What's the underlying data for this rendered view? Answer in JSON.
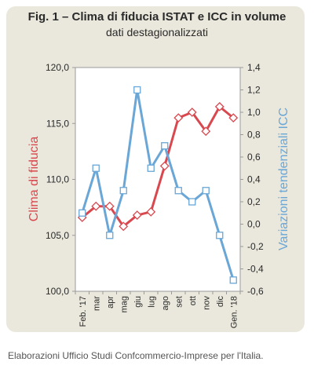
{
  "header": {
    "title": "Fig. 1 – Clima di fiducia ISTAT e ICC in volume",
    "subtitle": "dati destagionalizzati"
  },
  "footer": {
    "source": "Elaborazioni Ufficio Studi Confcommercio-Imprese per l'Italia."
  },
  "colors": {
    "panel_bg": "#eae8dc",
    "plot_bg": "#ffffff",
    "left_series": "#d9484e",
    "right_series": "#6aa6d6"
  },
  "chart_data": {
    "type": "line",
    "categories": [
      "Feb. '17",
      "mar",
      "apr",
      "mag",
      "giu",
      "lug",
      "ago",
      "set",
      "ott",
      "nov",
      "dic",
      "Gen. '18"
    ],
    "ylabel": "Clima di fiducia",
    "y2label": "Variazioni tendenziali ICC",
    "ylim": [
      100,
      120
    ],
    "y2lim": [
      -0.6,
      1.4
    ],
    "yticks": [
      "100,0",
      "105,0",
      "110,0",
      "115,0",
      "120,0"
    ],
    "y2ticks": [
      "-0,6",
      "-0,4",
      "-0,2",
      "0,0",
      "0,2",
      "0,4",
      "0,6",
      "0,8",
      "1,0",
      "1,2",
      "1,4"
    ],
    "series": [
      {
        "values": [
          106.6,
          107.6,
          107.6,
          105.8,
          106.8,
          107.1,
          111.2,
          115.5,
          116.0,
          114.3,
          116.5,
          115.5
        ],
        "axis": "left",
        "marker": "diamond"
      },
      {
        "values": [
          0.1,
          0.5,
          -0.1,
          0.3,
          1.2,
          0.5,
          0.7,
          0.3,
          0.2,
          0.3,
          -0.1,
          -0.5
        ],
        "axis": "right",
        "marker": "square"
      }
    ]
  }
}
